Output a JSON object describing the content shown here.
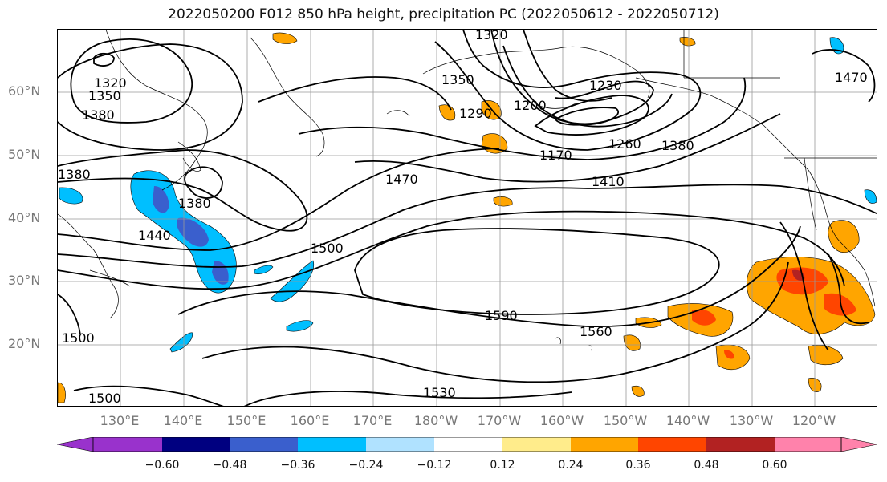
{
  "title": "2022050200 F012 850 hPa height, precipitation PC (2022050612 - 2022050712)",
  "lat_labels": [
    "60°N",
    "50°N",
    "40°N",
    "30°N",
    "20°N"
  ],
  "lon_labels": [
    "130°E",
    "140°E",
    "150°E",
    "160°E",
    "170°E",
    "180°W",
    "170°W",
    "160°W",
    "150°W",
    "140°W",
    "130°W",
    "120°W"
  ],
  "contour_labels": [
    "1320",
    "1350",
    "1380",
    "1380",
    "1380",
    "1440",
    "1500",
    "1470",
    "1350",
    "1320",
    "1290",
    "1200",
    "1230",
    "1170",
    "1260",
    "1380",
    "1410",
    "1470",
    "1590",
    "1560",
    "1530",
    "1500",
    "1500"
  ],
  "colorbar": {
    "ticks": [
      "−0.60",
      "−0.48",
      "−0.36",
      "−0.24",
      "−0.12",
      "0.12",
      "0.24",
      "0.36",
      "0.48",
      "0.60"
    ],
    "colors": [
      "#9932cc",
      "#000080",
      "#3a5fcd",
      "#00bfff",
      "#b0e2ff",
      "#ffffff",
      "#ffec8b",
      "#ffa500",
      "#ff4500",
      "#b22222",
      "#ff82ab"
    ]
  }
}
